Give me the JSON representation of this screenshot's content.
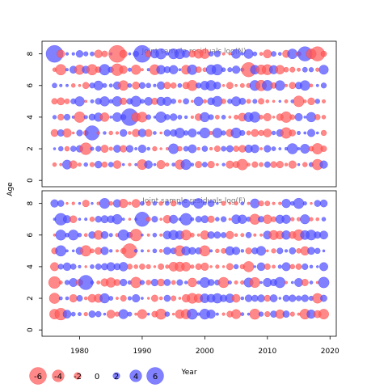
{
  "chart_data": {
    "type": "scatter",
    "subtype": "bubble residual plot",
    "x_label": "Year",
    "y_label": "Age",
    "x_ticks": [
      1980,
      1990,
      2000,
      2010,
      2020
    ],
    "y_ticks": [
      0,
      2,
      4,
      6,
      8
    ],
    "xlim": [
      1974,
      2021
    ],
    "ylim": [
      -0.4,
      8.8
    ],
    "years": [
      1976,
      2019
    ],
    "ages": [
      1,
      8
    ],
    "grid": false,
    "legend_placement": "bottom-left",
    "colors": {
      "negative": "#ff5a5a",
      "positive": "#5050ff"
    },
    "panels": [
      {
        "title": "Joint sample residuals log(N)",
        "seed": 11,
        "highlights": [
          {
            "year": 1976,
            "age": 8,
            "value": 6
          },
          {
            "year": 1986,
            "age": 8,
            "value": -6
          },
          {
            "year": 1990,
            "age": 8,
            "value": 6
          },
          {
            "year": 1988,
            "age": 4,
            "value": 6
          },
          {
            "year": 2007,
            "age": 7,
            "value": -5
          },
          {
            "year": 2016,
            "age": 8,
            "value": 5
          },
          {
            "year": 2018,
            "age": 8,
            "value": -5
          },
          {
            "year": 1986,
            "age": 7,
            "value": -4
          },
          {
            "year": 1982,
            "age": 3,
            "value": 5
          },
          {
            "year": 1981,
            "age": 2,
            "value": -4
          }
        ]
      },
      {
        "title": "Joint sample residuals log(F)",
        "seed": 29,
        "highlights": [
          {
            "year": 1977,
            "age": 7,
            "value": 4
          },
          {
            "year": 1990,
            "age": 7,
            "value": 5
          },
          {
            "year": 1997,
            "age": 7,
            "value": 4
          },
          {
            "year": 1976,
            "age": 3,
            "value": -4
          },
          {
            "year": 1981,
            "age": 3,
            "value": 5
          },
          {
            "year": 1988,
            "age": 5,
            "value": -5
          },
          {
            "year": 1989,
            "age": 6,
            "value": -4
          },
          {
            "year": 1977,
            "age": 1,
            "value": -4
          }
        ]
      }
    ],
    "legend": {
      "values": [
        -6,
        -4,
        -2,
        0,
        2,
        4,
        6
      ],
      "labels": [
        "-6",
        "-4",
        "-2",
        "0",
        "2",
        "4",
        "6"
      ]
    }
  }
}
